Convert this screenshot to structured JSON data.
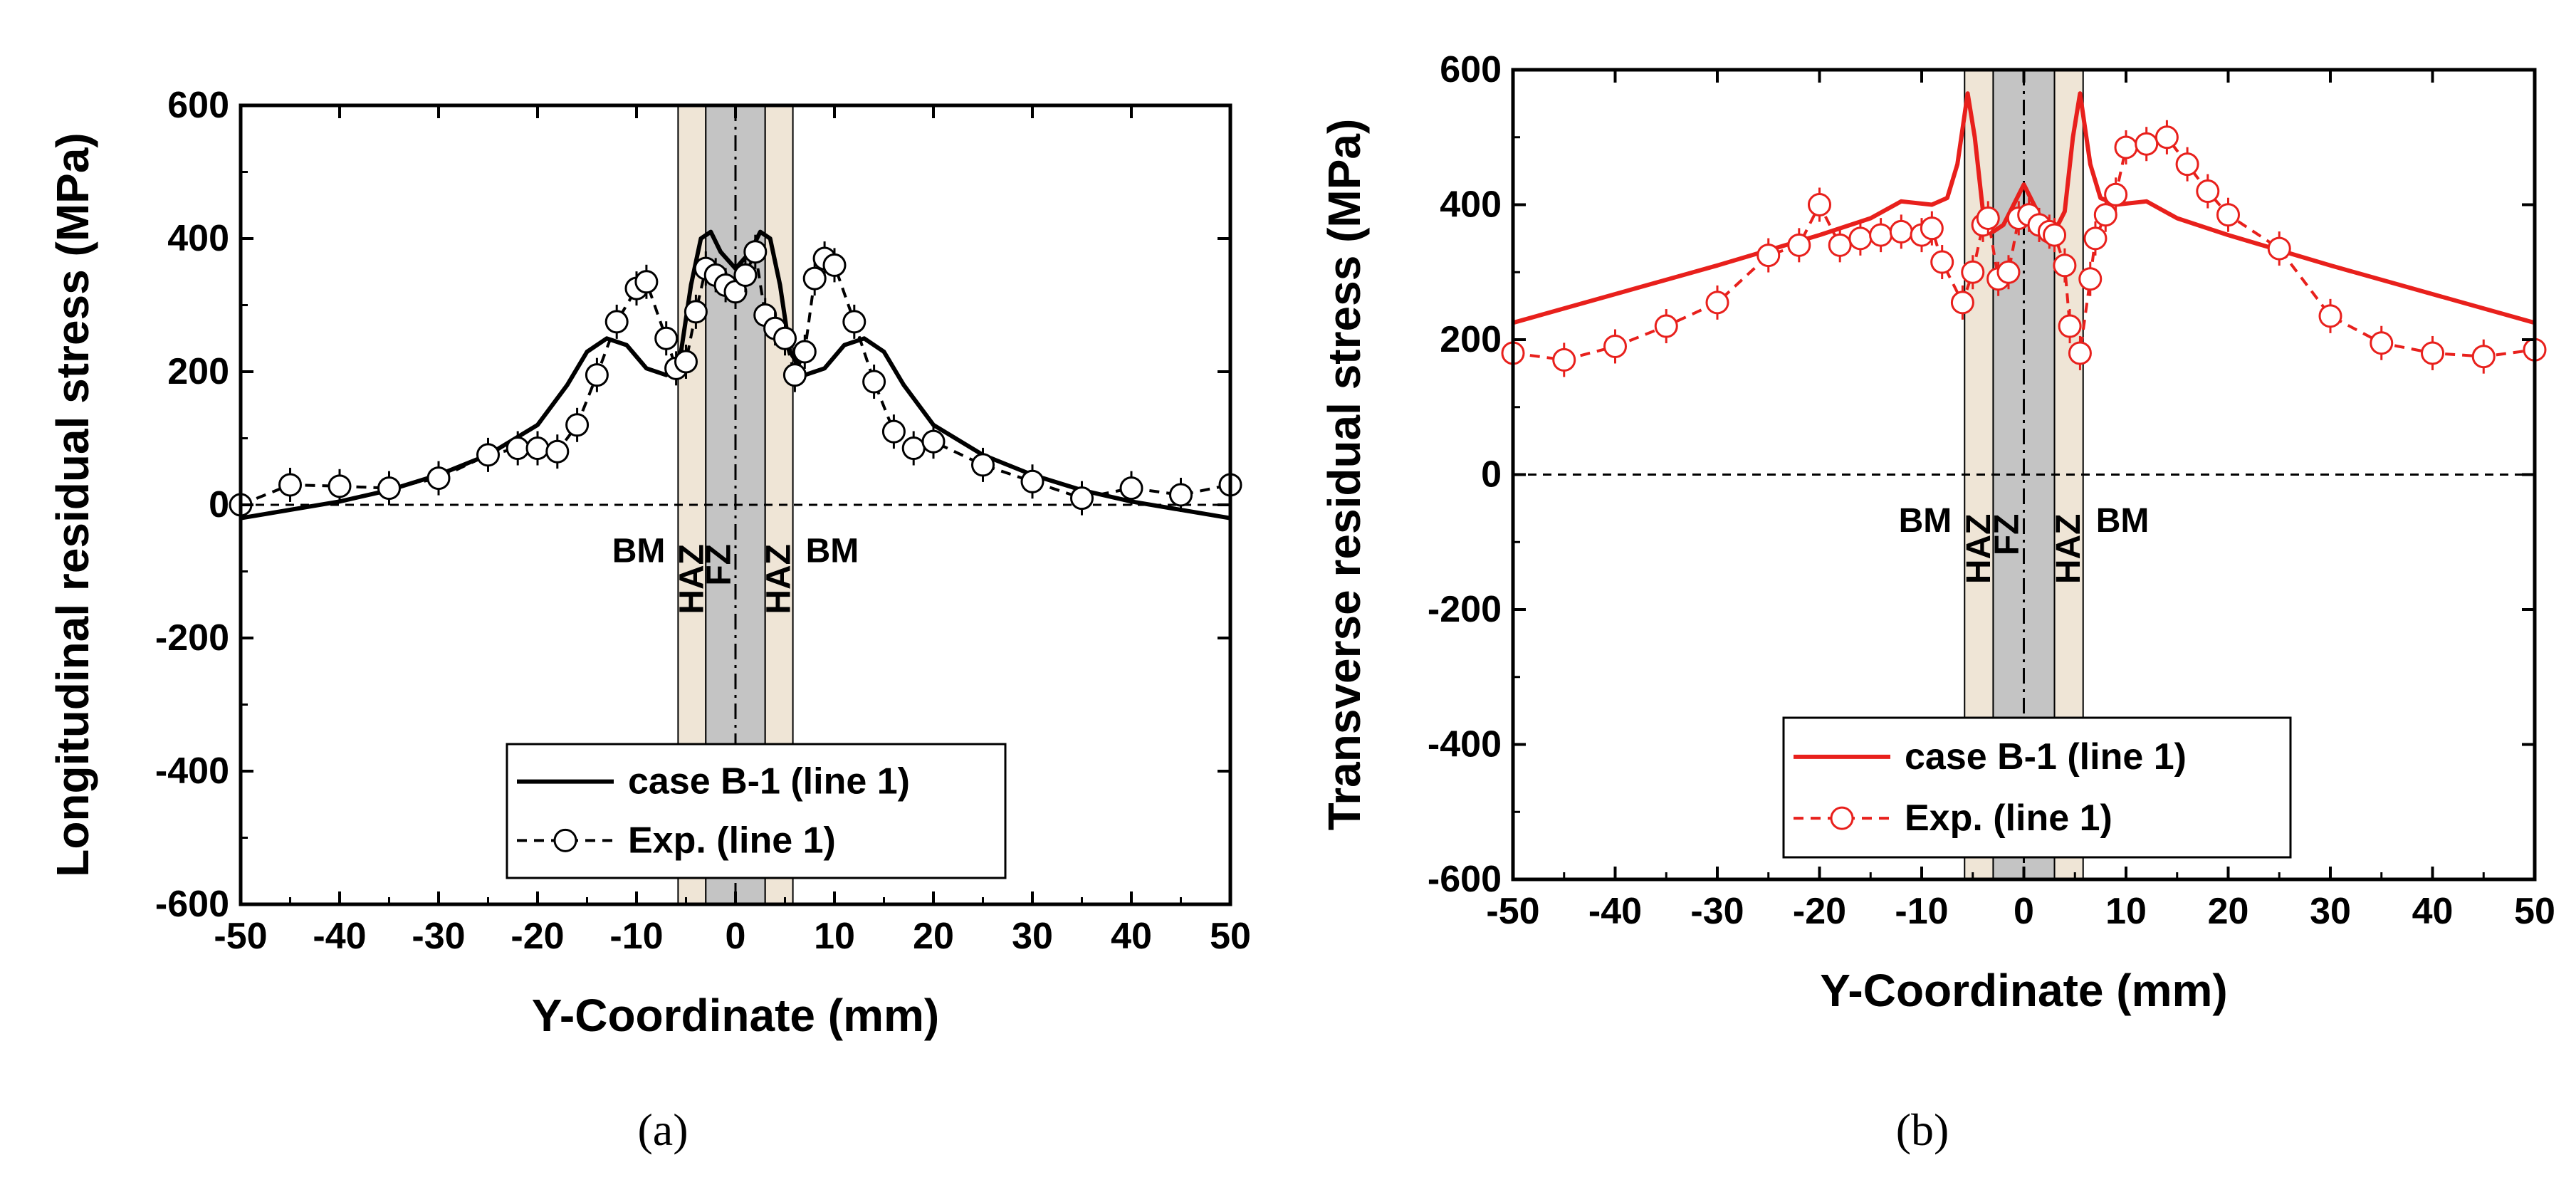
{
  "chart_data": [
    {
      "type": "line",
      "panel_label": "(a)",
      "ylabel": "Longitudinal residual stress (MPa)",
      "xlabel": "Y-Coordinate (mm)",
      "xlim": [
        -50,
        50
      ],
      "ylim": [
        -600,
        600
      ],
      "xticks": [
        -50,
        -40,
        -30,
        -20,
        -10,
        0,
        10,
        20,
        30,
        40,
        50
      ],
      "yticks": [
        -600,
        -400,
        -200,
        0,
        200,
        400,
        600
      ],
      "color": "#000000",
      "regions": [
        {
          "label": "HAZ",
          "x": [
            -5.8,
            -3.0
          ],
          "fill": "#efe5d6"
        },
        {
          "label": "FZ",
          "x": [
            -3.0,
            3.0
          ],
          "fill": "#c4c4c4"
        },
        {
          "label": "HAZ",
          "x": [
            3.0,
            5.8
          ],
          "fill": "#efe5d6"
        }
      ],
      "annotations": [
        "BM",
        "HAZ",
        "FZ",
        "HAZ",
        "BM"
      ],
      "legend": {
        "position": "bottom-center",
        "entries": [
          "case B-1 (line 1)",
          "Exp. (line 1)"
        ]
      },
      "series": [
        {
          "name": "case B-1 (line 1)",
          "style": "solid",
          "x": [
            -50,
            -40,
            -35,
            -30,
            -25,
            -20,
            -17,
            -15,
            -13,
            -11,
            -9,
            -7,
            -5.5,
            -4.5,
            -3.5,
            -2.5,
            -1.5,
            0,
            1.5,
            2.5,
            3.5,
            4.5,
            5.5,
            7,
            9,
            11,
            13,
            15,
            17,
            20,
            25,
            30,
            35,
            40,
            50
          ],
          "y": [
            -20,
            5,
            22,
            45,
            75,
            120,
            180,
            230,
            250,
            240,
            205,
            195,
            230,
            330,
            400,
            410,
            380,
            355,
            380,
            410,
            400,
            330,
            230,
            195,
            205,
            240,
            250,
            230,
            180,
            120,
            75,
            45,
            22,
            5,
            -20
          ]
        },
        {
          "name": "Exp. (line 1)",
          "style": "dashed",
          "marker": "circle",
          "x": [
            -50,
            -45,
            -40,
            -35,
            -30,
            -25,
            -22,
            -20,
            -18,
            -16,
            -14,
            -12,
            -10,
            -9,
            -7,
            -6,
            -5,
            -4,
            -3,
            -2,
            -1,
            0,
            1,
            2,
            3,
            4,
            5,
            6,
            7,
            8,
            9,
            10,
            12,
            14,
            16,
            18,
            20,
            25,
            30,
            35,
            40,
            45,
            50
          ],
          "y": [
            0,
            30,
            28,
            25,
            40,
            75,
            85,
            85,
            80,
            120,
            195,
            275,
            325,
            335,
            250,
            205,
            215,
            290,
            355,
            345,
            330,
            320,
            345,
            380,
            285,
            265,
            250,
            195,
            230,
            340,
            370,
            360,
            275,
            185,
            110,
            85,
            95,
            60,
            35,
            10,
            25,
            15,
            30
          ]
        }
      ]
    },
    {
      "type": "line",
      "panel_label": "(b)",
      "ylabel": "Transverse residual stress (MPa)",
      "xlabel": "Y-Coordinate (mm)",
      "xlim": [
        -50,
        50
      ],
      "ylim": [
        -600,
        600
      ],
      "xticks": [
        -50,
        -40,
        -30,
        -20,
        -10,
        0,
        10,
        20,
        30,
        40,
        50
      ],
      "yticks": [
        -600,
        -400,
        -200,
        0,
        200,
        400,
        600
      ],
      "color": "#e8201c",
      "regions": [
        {
          "label": "HAZ",
          "x": [
            -5.8,
            -3.0
          ],
          "fill": "#efe5d6"
        },
        {
          "label": "FZ",
          "x": [
            -3.0,
            3.0
          ],
          "fill": "#c4c4c4"
        },
        {
          "label": "HAZ",
          "x": [
            3.0,
            5.8
          ],
          "fill": "#efe5d6"
        }
      ],
      "annotations": [
        "BM",
        "HAZ",
        "FZ",
        "HAZ",
        "BM"
      ],
      "legend": {
        "position": "bottom-center",
        "entries": [
          "case B-1 (line 1)",
          "Exp. (line 1)"
        ]
      },
      "series": [
        {
          "name": "case B-1 (line 1)",
          "style": "solid",
          "x": [
            -50,
            -30,
            -20,
            -15,
            -12,
            -9,
            -7.5,
            -6.5,
            -5.5,
            -4.8,
            -4,
            -3,
            -2,
            -1,
            0,
            1,
            2,
            3,
            4,
            4.8,
            5.5,
            6.5,
            7.5,
            9,
            12,
            15,
            20,
            30,
            50
          ],
          "y": [
            225,
            310,
            355,
            380,
            405,
            400,
            410,
            460,
            565,
            500,
            390,
            360,
            370,
            400,
            430,
            400,
            370,
            360,
            390,
            500,
            565,
            460,
            410,
            400,
            405,
            380,
            355,
            310,
            225
          ]
        },
        {
          "name": "Exp. (line 1)",
          "style": "dashed",
          "marker": "circle",
          "x": [
            -50,
            -45,
            -40,
            -35,
            -30,
            -25,
            -22,
            -20,
            -18,
            -16,
            -14,
            -12,
            -10,
            -9,
            -8,
            -6,
            -5,
            -4,
            -3.5,
            -2.5,
            -1.5,
            -0.5,
            0.5,
            1.5,
            2.5,
            3,
            4,
            4.5,
            5.5,
            6.5,
            7,
            8,
            9,
            10,
            12,
            14,
            16,
            18,
            20,
            25,
            30,
            35,
            40,
            45,
            50
          ],
          "y": [
            180,
            170,
            190,
            220,
            255,
            325,
            340,
            400,
            340,
            350,
            355,
            360,
            355,
            365,
            315,
            255,
            300,
            370,
            380,
            290,
            300,
            380,
            385,
            370,
            360,
            355,
            310,
            220,
            180,
            290,
            350,
            385,
            415,
            485,
            490,
            500,
            460,
            420,
            385,
            335,
            235,
            195,
            180,
            175,
            185
          ]
        }
      ]
    }
  ]
}
